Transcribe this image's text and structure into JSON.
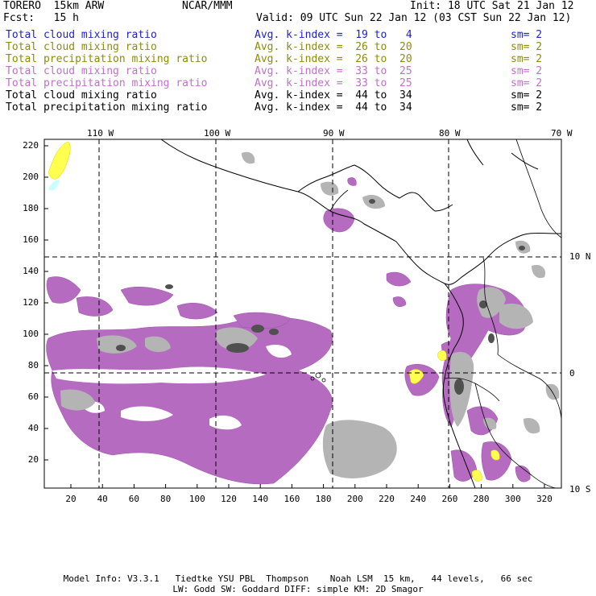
{
  "header": {
    "model": "TORERO  15km ARW",
    "center": "NCAR/MMM",
    "init": "Init: 18 UTC Sat 21 Jan 12",
    "fcst": "Fcst:   15 h",
    "valid": "Valid: 09 UTC Sun 22 Jan 12 (03 CST Sun 22 Jan 12)"
  },
  "legend": [
    {
      "field": "Total cloud mixing ratio",
      "kindex": "Avg. k-index =  19 to   4",
      "sm": "sm= 2",
      "color": "#1f22c8"
    },
    {
      "field": "Total cloud mixing ratio",
      "kindex": "Avg. k-index =  26 to  20",
      "sm": "sm= 2",
      "color": "#8c8c0a"
    },
    {
      "field": "Total precipitation mixing ratio",
      "kindex": "Avg. k-index =  26 to  20",
      "sm": "sm= 2",
      "color": "#8c8c0a"
    },
    {
      "field": "Total cloud mixing ratio",
      "kindex": "Avg. k-index =  33 to  25",
      "sm": "sm= 2",
      "color": "#c070c8"
    },
    {
      "field": "Total precipitation mixing ratio",
      "kindex": "Avg. k-index =  33 to  25",
      "sm": "sm= 2",
      "color": "#c070c8"
    },
    {
      "field": "Total cloud mixing ratio",
      "kindex": "Avg. k-index =  44 to  34",
      "sm": "sm= 2",
      "color": "#000000"
    },
    {
      "field": "Total precipitation mixing ratio",
      "kindex": "Avg. k-index =  44 to  34",
      "sm": "sm= 2",
      "color": "#000000"
    }
  ],
  "map": {
    "lon_labels": [
      "110 W",
      "100 W",
      "90 W",
      "80 W",
      "70 W"
    ],
    "lat_labels": [
      "10 N",
      "0",
      "10 S"
    ],
    "y_ticks": [
      "20",
      "40",
      "60",
      "80",
      "100",
      "120",
      "140",
      "160",
      "180",
      "200",
      "220"
    ],
    "x_ticks": [
      "20",
      "40",
      "60",
      "80",
      "100",
      "120",
      "140",
      "160",
      "180",
      "200",
      "220",
      "240",
      "260",
      "280",
      "300",
      "320"
    ],
    "colors": {
      "purple_fill": "#b56bc0",
      "gray_fill": "#b4b4b4",
      "dark_gray": "#505050",
      "yellow_fill": "#ffff50",
      "cyan_fill": "#c8ffff",
      "coast": "#000000",
      "grid_dash": "#000000"
    }
  },
  "footer": {
    "line1": "Model Info: V3.3.1   Tiedtke YSU PBL  Thompson    Noah LSM  15 km,   44 levels,   66 sec",
    "line2": "LW: Godd SW: Goddard DIFF: simple KM: 2D Smagor"
  }
}
